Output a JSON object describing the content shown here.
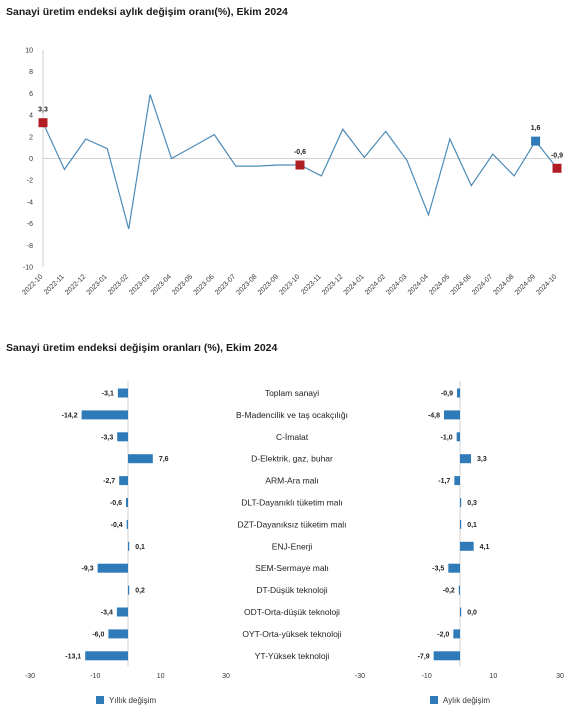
{
  "colors": {
    "line": "#4d8cb8",
    "marker_red": "#b01e24",
    "marker_blue": "#2f7ab8",
    "bar": "#2f7ab8",
    "axis": "#d0d0d0"
  },
  "chart_data": [
    {
      "type": "line",
      "title": "Sanayi üretim endeksi aylık değişim oranı(%), Ekim 2024",
      "x": [
        "2022-10",
        "2022-11",
        "2022-12",
        "2023-01",
        "2023-02",
        "2023-03",
        "2023-04",
        "2023-05",
        "2023-06",
        "2023-07",
        "2023-08",
        "2023-09",
        "2023-10",
        "2023-11",
        "2023-12",
        "2024-01",
        "2024-02",
        "2024-03",
        "2024-04",
        "2024-05",
        "2024-06",
        "2024-07",
        "2024-08",
        "2024-09",
        "2024-10"
      ],
      "y": [
        3.3,
        -1.0,
        1.8,
        0.9,
        -6.5,
        5.9,
        0.0,
        1.1,
        2.2,
        -0.7,
        -0.7,
        -0.6,
        -0.6,
        -1.6,
        2.7,
        0.1,
        2.5,
        -0.2,
        -5.2,
        1.8,
        -2.5,
        0.4,
        -1.6,
        1.6,
        -0.9
      ],
      "ylim": [
        -10,
        10
      ],
      "yticks": [
        "10",
        "8",
        "6",
        "4",
        "2",
        "0",
        "-2",
        "-4",
        "-6",
        "-8",
        "-10"
      ],
      "highlights": [
        {
          "index": 0,
          "label": "3,3",
          "color": "red"
        },
        {
          "index": 12,
          "label": "-0,6",
          "color": "red"
        },
        {
          "index": 23,
          "label": "1,6",
          "color": "blue"
        },
        {
          "index": 24,
          "label": "-0,9",
          "color": "red"
        }
      ]
    },
    {
      "type": "bar",
      "title": "Sanayi üretim endeksi değişim oranları (%), Ekim 2024",
      "categories": [
        "Toplam sanayi",
        "B-Madencilik ve taş ocakçılığı",
        "C-İmalat",
        "D-Elektrik, gaz, buhar",
        "ARM-Ara malı",
        "DLT-Dayanıklı tüketim malı",
        "DZT-Dayanıksız tüketim malı",
        "ENJ-Enerji",
        "SEM-Sermaye malı",
        "DT-Düşük teknoloji",
        "ODT-Orta-düşük teknoloji",
        "OYT-Orta-yüksek teknoloji",
        "YT-Yüksek teknoloji"
      ],
      "series": [
        {
          "name": "Yıllık değişim",
          "values": [
            -3.1,
            -14.2,
            -3.3,
            7.6,
            -2.7,
            -0.6,
            -0.4,
            0.1,
            -9.3,
            0.2,
            -3.4,
            -6.0,
            -13.1
          ],
          "labels": [
            "-3,1",
            "-14,2",
            "-3,3",
            "7,6",
            "-2,7",
            "-0,6",
            "-0,4",
            "0,1",
            "-9,3",
            "0,2",
            "-3,4",
            "-6,0",
            "-13,1"
          ]
        },
        {
          "name": "Aylık değişim",
          "values": [
            -0.9,
            -4.8,
            -1.0,
            3.3,
            -1.7,
            0.3,
            0.1,
            4.1,
            -3.5,
            -0.2,
            0.0,
            -2.0,
            -7.9
          ],
          "labels": [
            "-0,9",
            "-4,8",
            "-1,0",
            "3,3",
            "-1,7",
            "0,3",
            "0,1",
            "4,1",
            "-3,5",
            "-0,2",
            "0,0",
            "-2,0",
            "-7,9"
          ]
        }
      ],
      "xlim": [
        -30,
        30
      ],
      "xticks": [
        "-30",
        "-10",
        "10",
        "30"
      ]
    }
  ]
}
